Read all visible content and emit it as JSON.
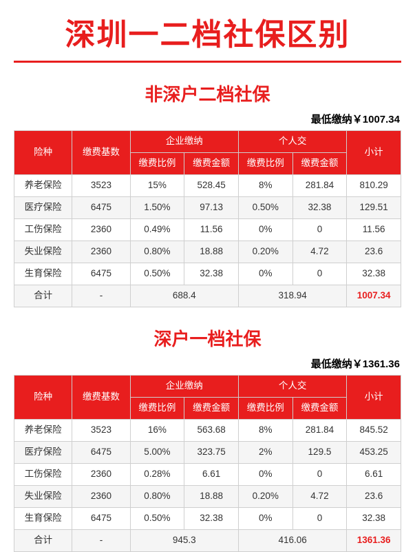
{
  "colors": {
    "primary": "#e81e1e",
    "header_bg": "#e81e1e",
    "border": "#cfcfcf",
    "total_red": "#e81e1e",
    "rule": "#e81e1e"
  },
  "main_title": "深圳一二档社保区别",
  "header_labels": {
    "type": "险种",
    "base": "缴费基数",
    "company": "企业缴纳",
    "personal": "个人交",
    "rate": "缴费比例",
    "amount": "缴费金额",
    "subtotal": "小计"
  },
  "total_label": "合计",
  "sections": [
    {
      "title": "非深户二档社保",
      "min_label": "最低缴纳￥1007.34",
      "rows": [
        {
          "type": "养老保险",
          "base": "3523",
          "crate": "15%",
          "camt": "528.45",
          "prate": "8%",
          "pamt": "281.84",
          "sub": "810.29"
        },
        {
          "type": "医疗保险",
          "base": "6475",
          "crate": "1.50%",
          "camt": "97.13",
          "prate": "0.50%",
          "pamt": "32.38",
          "sub": "129.51"
        },
        {
          "type": "工伤保险",
          "base": "2360",
          "crate": "0.49%",
          "camt": "11.56",
          "prate": "0%",
          "pamt": "0",
          "sub": "11.56"
        },
        {
          "type": "失业保险",
          "base": "2360",
          "crate": "0.80%",
          "camt": "18.88",
          "prate": "0.20%",
          "pamt": "4.72",
          "sub": "23.6"
        },
        {
          "type": "生育保险",
          "base": "6475",
          "crate": "0.50%",
          "camt": "32.38",
          "prate": "0%",
          "pamt": "0",
          "sub": "32.38"
        }
      ],
      "totals": {
        "base": "-",
        "company": "688.4",
        "personal": "318.94",
        "grand": "1007.34"
      }
    },
    {
      "title": "深户一档社保",
      "min_label": "最低缴纳￥1361.36",
      "rows": [
        {
          "type": "养老保险",
          "base": "3523",
          "crate": "16%",
          "camt": "563.68",
          "prate": "8%",
          "pamt": "281.84",
          "sub": "845.52"
        },
        {
          "type": "医疗保险",
          "base": "6475",
          "crate": "5.00%",
          "camt": "323.75",
          "prate": "2%",
          "pamt": "129.5",
          "sub": "453.25"
        },
        {
          "type": "工伤保险",
          "base": "2360",
          "crate": "0.28%",
          "camt": "6.61",
          "prate": "0%",
          "pamt": "0",
          "sub": "6.61"
        },
        {
          "type": "失业保险",
          "base": "2360",
          "crate": "0.80%",
          "camt": "18.88",
          "prate": "0.20%",
          "pamt": "4.72",
          "sub": "23.6"
        },
        {
          "type": "生育保险",
          "base": "6475",
          "crate": "0.50%",
          "camt": "32.38",
          "prate": "0%",
          "pamt": "0",
          "sub": "32.38"
        }
      ],
      "totals": {
        "base": "-",
        "company": "945.3",
        "personal": "416.06",
        "grand": "1361.36"
      }
    }
  ]
}
